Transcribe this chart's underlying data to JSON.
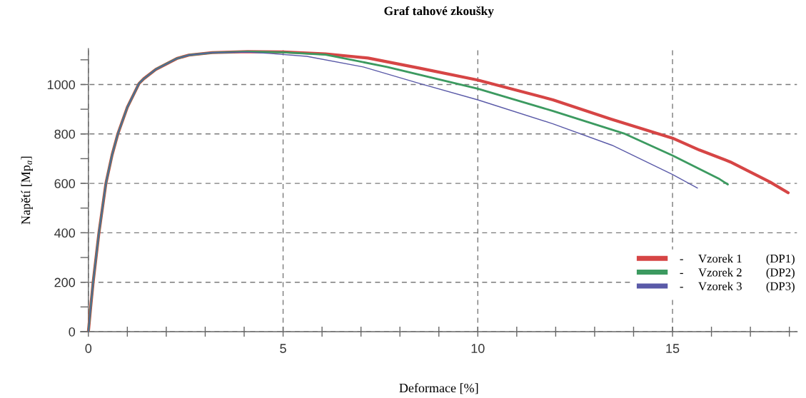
{
  "chart_data": {
    "type": "line",
    "title": "Graf tahové zkoušky",
    "xlabel": "Deformace [%]",
    "ylabel": "Napětí [Mp$_{a}$]",
    "xlim": [
      -0.2,
      18.2
    ],
    "ylim": [
      0,
      1145
    ],
    "xticks": [
      0,
      {
        "value": 1,
        "label": null
      },
      {
        "value": 2,
        "label": null
      },
      {
        "value": 3,
        "label": null
      },
      {
        "value": 4,
        "label": null
      },
      5,
      {
        "value": 6,
        "label": null
      },
      {
        "value": 7,
        "label": null
      },
      {
        "value": 8,
        "label": null
      },
      {
        "value": 9,
        "label": null
      },
      10,
      {
        "value": 11,
        "label": null
      },
      {
        "value": 12,
        "label": null
      },
      {
        "value": 13,
        "label": null
      },
      {
        "value": 14,
        "label": null
      },
      15,
      {
        "value": 16,
        "label": null
      },
      {
        "value": 17,
        "label": null
      },
      {
        "value": 18,
        "label": null
      }
    ],
    "yticks": [
      0,
      {
        "value": 100,
        "label": null
      },
      200,
      {
        "value": 300,
        "label": null
      },
      400,
      {
        "value": 500,
        "label": null
      },
      600,
      {
        "value": 700,
        "label": null
      },
      800,
      {
        "value": 900,
        "label": null
      },
      1000,
      {
        "value": 1100,
        "label": null
      }
    ],
    "grid": true,
    "legend": "lower right",
    "line_style": "solid",
    "series": [
      {
        "name": "-     Vzorek 1        (DP1)",
        "color": "#d64545",
        "x": [
          0,
          0.06,
          0.12,
          0.27,
          0.45,
          0.61,
          0.76,
          1.0,
          1.3,
          1.42,
          1.73,
          2.27,
          2.58,
          3.18,
          4.09,
          5.0,
          6.09,
          7.18,
          8.51,
          10.0,
          11.93,
          13.42,
          15.0,
          15.69,
          16.48,
          17.51,
          17.97
        ],
        "values": [
          0,
          101,
          197,
          399,
          600,
          716,
          802,
          908,
          1004,
          1023,
          1061,
          1105,
          1119,
          1129,
          1133,
          1132,
          1124,
          1107,
          1066,
          1018,
          938,
          860,
          783,
          735,
          687,
          605,
          562
        ]
      },
      {
        "name": "-     Vzorek 2        (DP2)",
        "color": "#3c9a60",
        "x": [
          0,
          0.06,
          0.12,
          0.27,
          0.45,
          0.61,
          0.76,
          1.0,
          1.3,
          1.42,
          1.73,
          2.27,
          2.58,
          3.18,
          4.09,
          5.0,
          6.09,
          7.67,
          10.0,
          11.93,
          13.75,
          15.0,
          16.18,
          16.42
        ],
        "values": [
          0,
          101,
          197,
          399,
          600,
          716,
          802,
          908,
          1004,
          1023,
          1061,
          1105,
          1119,
          1129,
          1133,
          1130,
          1121,
          1071,
          983,
          893,
          802,
          713,
          620,
          596
        ]
      },
      {
        "name": "-     Vzorek 3        (DP3)",
        "color": "#5a5aa8",
        "x": [
          0,
          0.06,
          0.12,
          0.27,
          0.45,
          0.61,
          0.76,
          1.0,
          1.3,
          1.42,
          1.73,
          2.27,
          2.58,
          3.18,
          4.09,
          4.64,
          5.61,
          7.06,
          8.51,
          10.0,
          11.93,
          13.45,
          15.0,
          15.64
        ],
        "values": [
          0,
          101,
          197,
          399,
          600,
          716,
          802,
          908,
          1004,
          1023,
          1061,
          1105,
          1119,
          1129,
          1131,
          1126,
          1114,
          1071,
          1004,
          938,
          841,
          754,
          636,
          581
        ]
      }
    ]
  }
}
